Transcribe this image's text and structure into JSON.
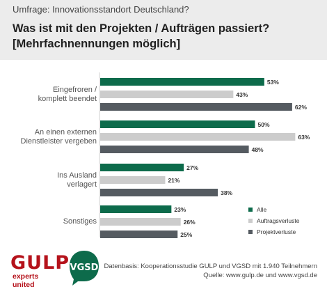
{
  "header": {
    "subtitle": "Umfrage: Innovationsstandort Deutschland?",
    "title": "Was ist mit den Projekten / Aufträgen passiert? [Mehrfachnennungen möglich]"
  },
  "chart_data": {
    "type": "bar",
    "orientation": "horizontal",
    "categories": [
      [
        "Eingefroren /",
        "komplett beendet"
      ],
      [
        "An einen externen",
        "Dienstleister vergeben"
      ],
      [
        "Ins Ausland",
        "verlagert"
      ],
      [
        "Sonstiges"
      ]
    ],
    "series": [
      {
        "name": "Alle",
        "values": [
          53,
          50,
          27,
          23
        ],
        "color": "#0d6b4b"
      },
      {
        "name": "Auftragsverluste",
        "values": [
          43,
          63,
          21,
          26
        ],
        "color": "#cccccc"
      },
      {
        "name": "Projektverluste",
        "values": [
          62,
          48,
          38,
          25
        ],
        "color": "#555b61"
      }
    ],
    "value_suffix": "%",
    "xlim": [
      0,
      100
    ],
    "grid": false,
    "legend_position": "bottom-right"
  },
  "footer": {
    "gulp_word": "GULP",
    "gulp_tagline": "experts united",
    "vgsd_word": "VGSD",
    "source_line1": "Datenbasis: Kooperationsstudie GULP und VGSD mit 1.940 Teilnehmern",
    "source_line2": "Quelle: www.gulp.de und www.vgsd.de"
  }
}
